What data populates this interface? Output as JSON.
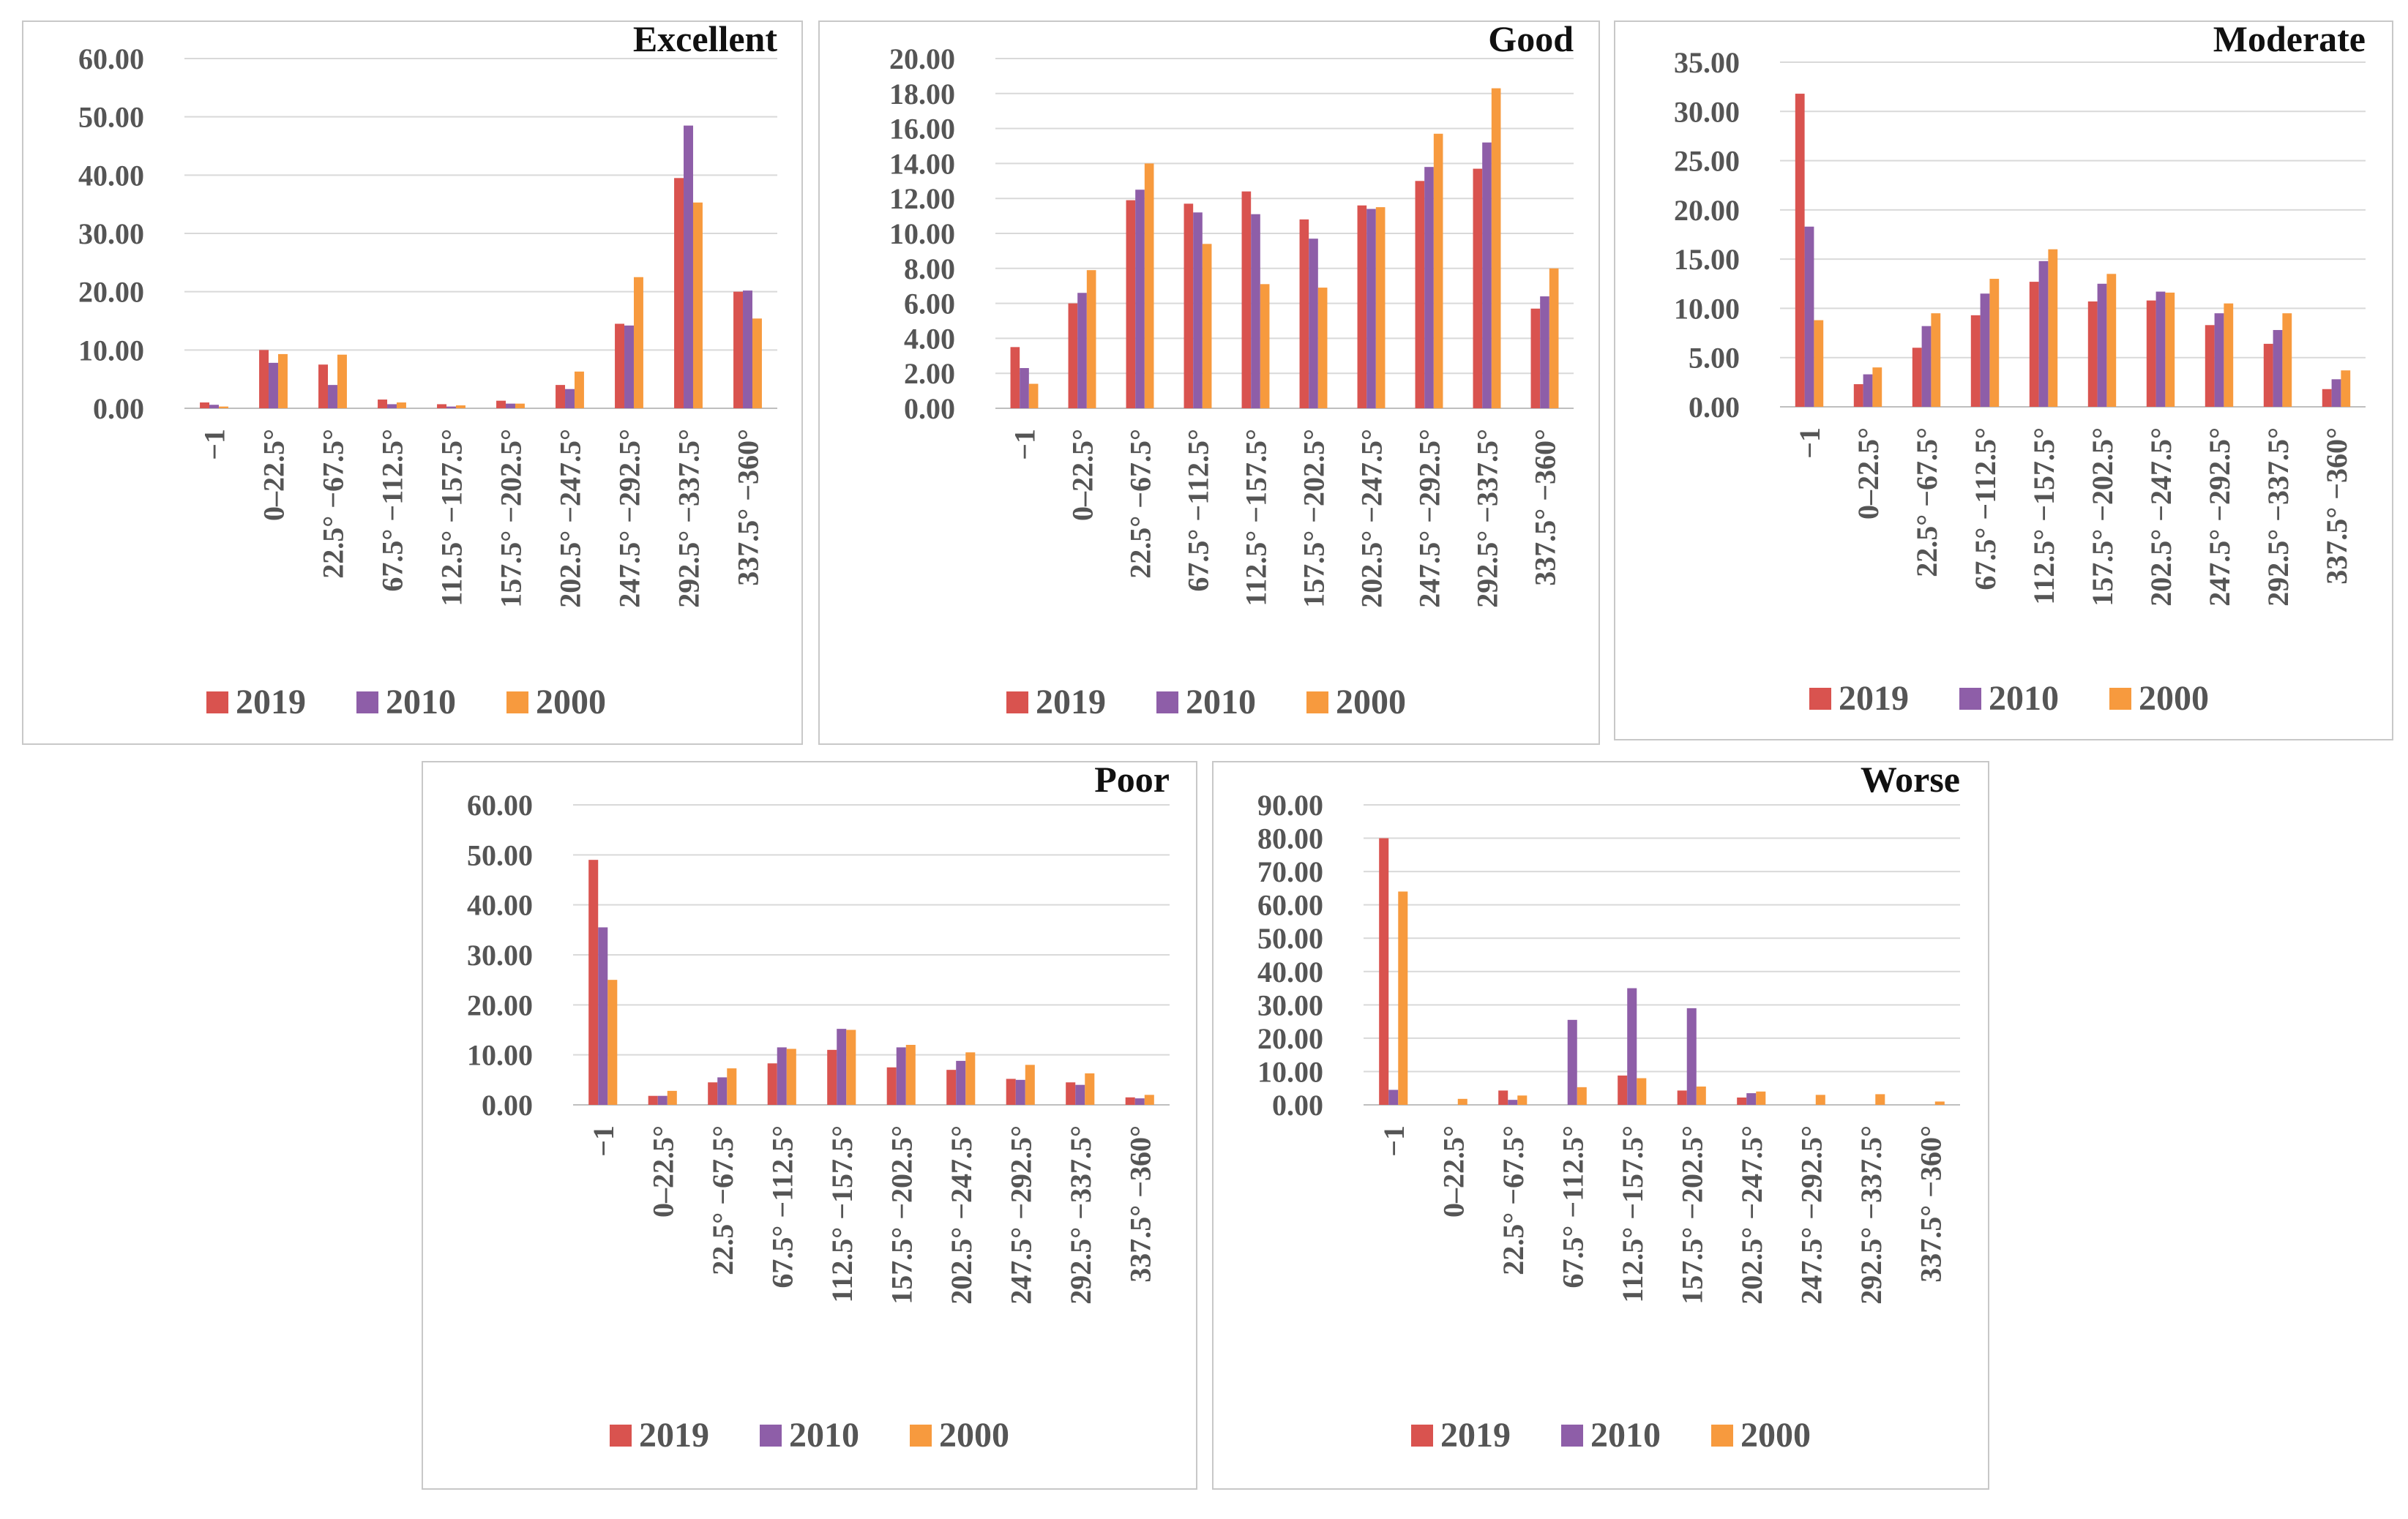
{
  "chart_data": [
    {
      "type": "bar",
      "title": "Excellent",
      "categories": [
        "−1",
        "0–22.5°",
        "22.5° −67.5°",
        "67.5° −112.5°",
        "112.5° −157.5°",
        "157.5° −202.5°",
        "202.5° −247.5°",
        "247.5° −292.5°",
        "292.5° −337.5°",
        "337.5° −360°"
      ],
      "y_ticks": [
        "0.00",
        "10.00",
        "20.00",
        "30.00",
        "40.00",
        "50.00",
        "60.00"
      ],
      "ylim": [
        0,
        60
      ],
      "legend": "bottom",
      "series": [
        {
          "name": "2019",
          "values": [
            1.0,
            10.0,
            7.5,
            1.5,
            0.7,
            1.3,
            4.0,
            14.5,
            39.5,
            20.0
          ]
        },
        {
          "name": "2010",
          "values": [
            0.6,
            7.8,
            4.0,
            0.7,
            0.3,
            0.8,
            3.3,
            14.2,
            48.5,
            20.2
          ]
        },
        {
          "name": "2000",
          "values": [
            0.3,
            9.3,
            9.2,
            1.0,
            0.5,
            0.8,
            6.3,
            22.5,
            35.3,
            15.4
          ]
        }
      ]
    },
    {
      "type": "bar",
      "title": "Good",
      "categories": [
        "−1",
        "0–22.5°",
        "22.5° −67.5°",
        "67.5° −112.5°",
        "112.5° −157.5°",
        "157.5° −202.5°",
        "202.5° −247.5°",
        "247.5° −292.5°",
        "292.5° −337.5°",
        "337.5° −360°"
      ],
      "y_ticks": [
        "0.00",
        "2.00",
        "4.00",
        "6.00",
        "8.00",
        "10.00",
        "12.00",
        "14.00",
        "16.00",
        "18.00",
        "20.00"
      ],
      "ylim": [
        0,
        20
      ],
      "legend": "bottom",
      "series": [
        {
          "name": "2019",
          "values": [
            3.5,
            6.0,
            11.9,
            11.7,
            12.4,
            10.8,
            11.6,
            13.0,
            13.7,
            5.7
          ]
        },
        {
          "name": "2010",
          "values": [
            2.3,
            6.6,
            12.5,
            11.2,
            11.1,
            9.7,
            11.4,
            13.8,
            15.2,
            6.4
          ]
        },
        {
          "name": "2000",
          "values": [
            1.4,
            7.9,
            14.0,
            9.4,
            7.1,
            6.9,
            11.5,
            15.7,
            18.3,
            8.0
          ]
        }
      ]
    },
    {
      "type": "bar",
      "title": "Moderate",
      "categories": [
        "−1",
        "0–22.5°",
        "22.5° −67.5°",
        "67.5° −112.5°",
        "112.5° −157.5°",
        "157.5° −202.5°",
        "202.5° −247.5°",
        "247.5° −292.5°",
        "292.5° −337.5°",
        "337.5° −360°"
      ],
      "y_ticks": [
        "0.00",
        "5.00",
        "10.00",
        "15.00",
        "20.00",
        "25.00",
        "30.00",
        "35.00"
      ],
      "ylim": [
        0,
        35
      ],
      "legend": "bottom",
      "series": [
        {
          "name": "2019",
          "values": [
            31.8,
            2.3,
            6.0,
            9.3,
            12.7,
            10.7,
            10.8,
            8.3,
            6.4,
            1.8
          ]
        },
        {
          "name": "2010",
          "values": [
            18.3,
            3.3,
            8.2,
            11.5,
            14.8,
            12.5,
            11.7,
            9.5,
            7.8,
            2.8
          ]
        },
        {
          "name": "2000",
          "values": [
            8.8,
            4.0,
            9.5,
            13.0,
            16.0,
            13.5,
            11.6,
            10.5,
            9.5,
            3.7
          ]
        }
      ]
    },
    {
      "type": "bar",
      "title": "Poor",
      "categories": [
        "−1",
        "0–22.5°",
        "22.5° −67.5°",
        "67.5° −112.5°",
        "112.5° −157.5°",
        "157.5° −202.5°",
        "202.5° −247.5°",
        "247.5° −292.5°",
        "292.5° −337.5°",
        "337.5° −360°"
      ],
      "y_ticks": [
        "0.00",
        "10.00",
        "20.00",
        "30.00",
        "40.00",
        "50.00",
        "60.00"
      ],
      "ylim": [
        0,
        60
      ],
      "legend": "bottom",
      "series": [
        {
          "name": "2019",
          "values": [
            49.0,
            1.8,
            4.5,
            8.3,
            11.0,
            7.5,
            7.0,
            5.2,
            4.5,
            1.5
          ]
        },
        {
          "name": "2010",
          "values": [
            35.5,
            1.8,
            5.5,
            11.5,
            15.2,
            11.5,
            8.8,
            5.0,
            4.0,
            1.3
          ]
        },
        {
          "name": "2000",
          "values": [
            25.0,
            2.8,
            7.3,
            11.2,
            15.0,
            12.0,
            10.5,
            8.0,
            6.3,
            2.0
          ]
        }
      ]
    },
    {
      "type": "bar",
      "title": "Worse",
      "categories": [
        "−1",
        "0–22.5°",
        "22.5° −67.5°",
        "67.5° −112.5°",
        "112.5° −157.5°",
        "157.5° −202.5°",
        "202.5° −247.5°",
        "247.5° −292.5°",
        "292.5° −337.5°",
        "337.5° −360°"
      ],
      "y_ticks": [
        "0.00",
        "10.00",
        "20.00",
        "30.00",
        "40.00",
        "50.00",
        "60.00",
        "70.00",
        "80.00",
        "90.00"
      ],
      "ylim": [
        0,
        90
      ],
      "legend": "bottom",
      "series": [
        {
          "name": "2019",
          "values": [
            80.0,
            0,
            4.3,
            0,
            8.8,
            4.3,
            2.2,
            0,
            0,
            0
          ]
        },
        {
          "name": "2010",
          "values": [
            4.5,
            0,
            1.5,
            25.5,
            35.0,
            29.0,
            3.5,
            0,
            0,
            0
          ]
        },
        {
          "name": "2000",
          "values": [
            64.0,
            1.8,
            2.8,
            5.3,
            8.0,
            5.5,
            4.0,
            3.0,
            3.2,
            1.0
          ]
        }
      ]
    }
  ],
  "colors": {
    "2019": "#d9534f",
    "2010": "#8e5ea8",
    "2000": "#f79a3e"
  }
}
